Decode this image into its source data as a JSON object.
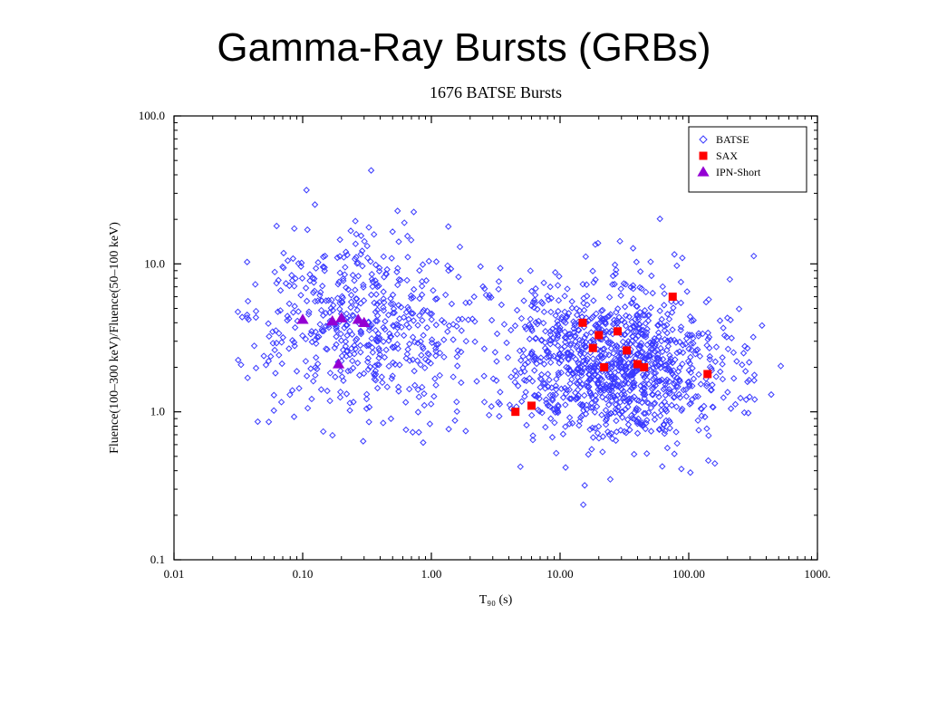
{
  "page_title": "Gamma-Ray Bursts (GRBs)",
  "chart": {
    "type": "scatter",
    "title": "1676 BATSE Bursts",
    "title_fontsize": 18,
    "xlabel": "T₉₀ (s)",
    "ylabel": "Fluence(100–300 keV)/Fluence(50–100 keV)",
    "label_fontsize": 14,
    "tick_fontsize": 13,
    "xscale": "log",
    "yscale": "log",
    "xlim": [
      0.01,
      1000
    ],
    "ylim": [
      0.1,
      100
    ],
    "xticks": [
      0.01,
      0.1,
      1.0,
      10.0,
      100.0,
      1000
    ],
    "xticklabels": [
      "0.01",
      "0.10",
      "1.00",
      "10.00",
      "100.00",
      "1000."
    ],
    "yticks": [
      0.1,
      1.0,
      10.0,
      100.0
    ],
    "yticklabels": [
      "0.1",
      "1.0",
      "10.0",
      "100.0"
    ],
    "background_color": "#ffffff",
    "axis_color": "#000000",
    "legend": {
      "position": "top-right",
      "border_color": "#000000",
      "bg": "#ffffff",
      "fontsize": 12,
      "items": [
        {
          "label": "BATSE",
          "marker": "diamond",
          "color": "#3a3aff",
          "filled": false
        },
        {
          "label": "SAX",
          "marker": "square",
          "color": "#ff0000",
          "filled": true
        },
        {
          "label": "IPN-Short",
          "marker": "triangle",
          "color": "#9400d3",
          "filled": true
        }
      ]
    },
    "series": [
      {
        "name": "BATSE",
        "marker": "diamond",
        "color": "#3a3aff",
        "filled": false,
        "size": 6,
        "n_points": 1676,
        "distribution_note": "bimodal in T90 around ~0.3s and ~30s",
        "data_generated": true
      },
      {
        "name": "SAX",
        "marker": "square",
        "color": "#ff0000",
        "filled": true,
        "size": 9,
        "points": [
          [
            4.5,
            1.0
          ],
          [
            6.0,
            1.1
          ],
          [
            15,
            4.0
          ],
          [
            18,
            2.7
          ],
          [
            20,
            3.3
          ],
          [
            22,
            2.0
          ],
          [
            28,
            3.5
          ],
          [
            33,
            2.6
          ],
          [
            40,
            2.1
          ],
          [
            45,
            2.0
          ],
          [
            75,
            6.0
          ],
          [
            140,
            1.8
          ]
        ]
      },
      {
        "name": "IPN-Short",
        "marker": "triangle",
        "color": "#9400d3",
        "filled": true,
        "size": 11,
        "points": [
          [
            0.1,
            4.2
          ],
          [
            0.17,
            4.1
          ],
          [
            0.2,
            4.3
          ],
          [
            0.19,
            2.1
          ],
          [
            0.27,
            4.2
          ],
          [
            0.3,
            4.0
          ]
        ]
      }
    ]
  }
}
